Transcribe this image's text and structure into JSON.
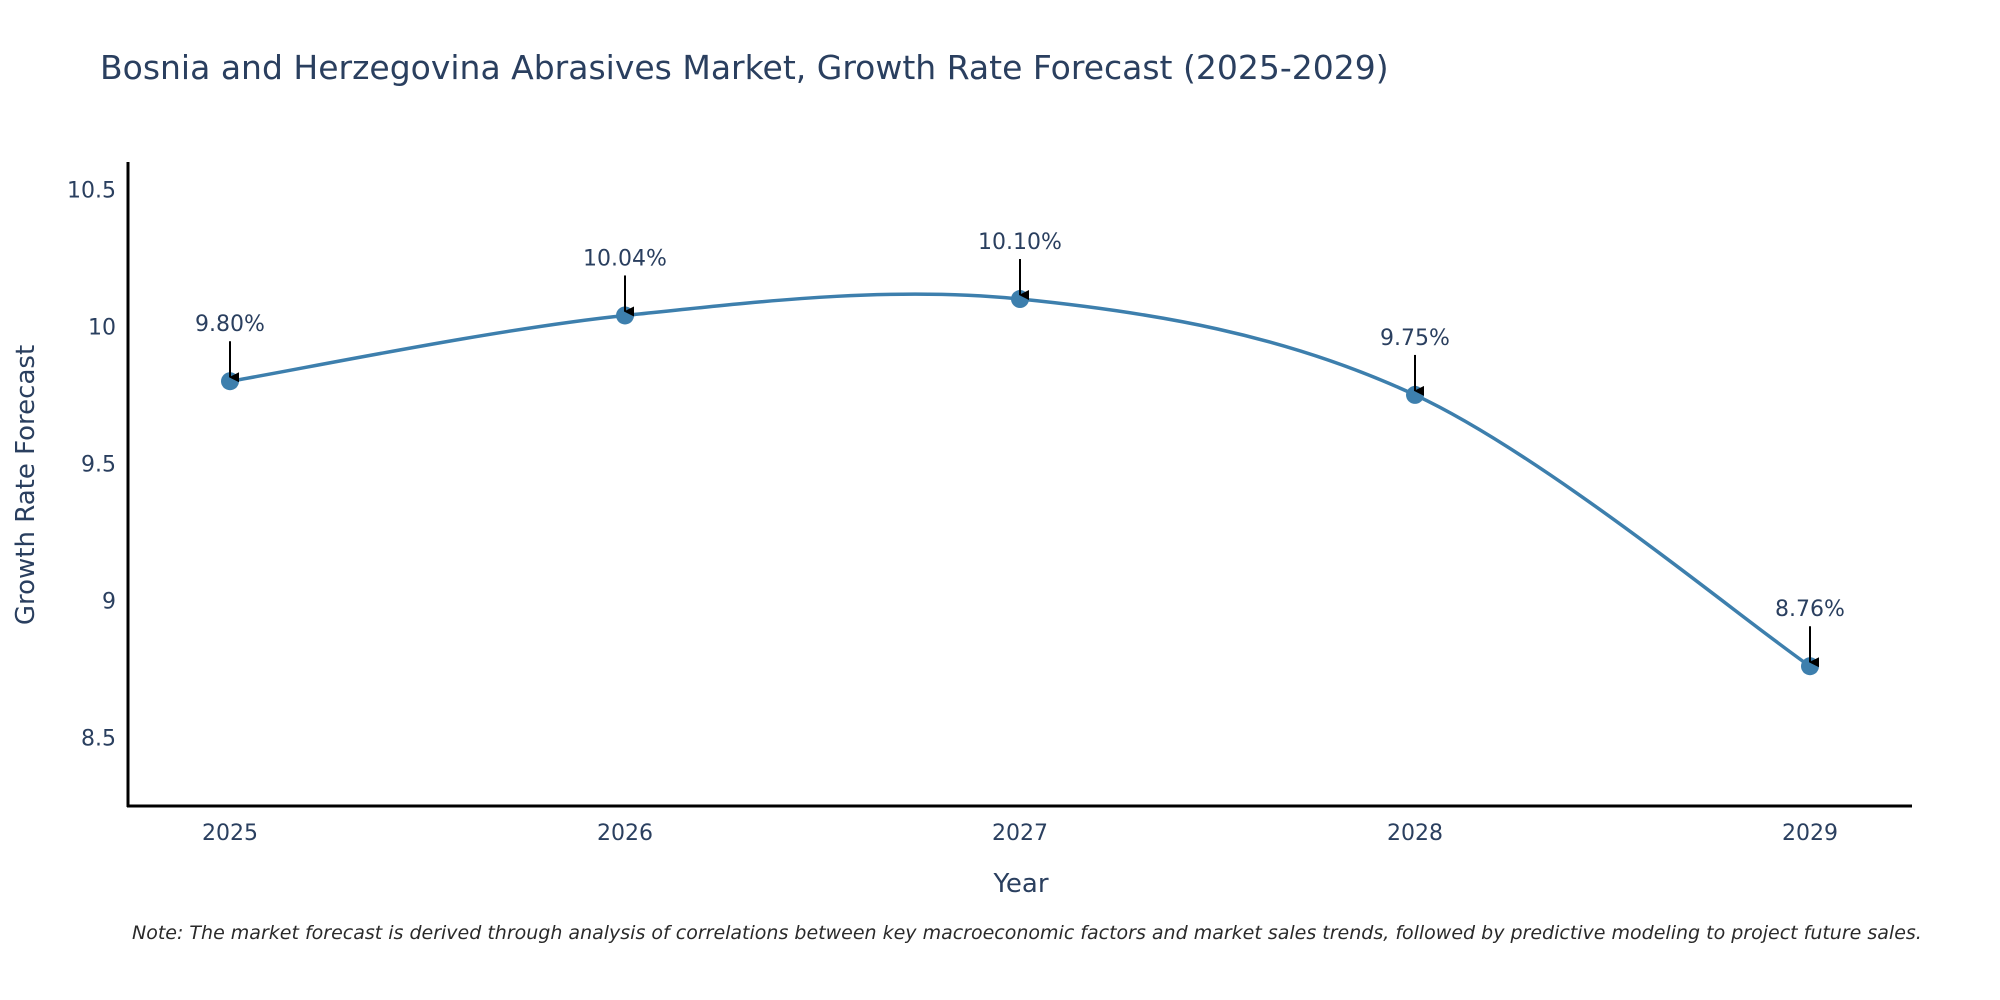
{
  "chart_data": {
    "type": "line",
    "title": "Bosnia and Herzegovina Abrasives Market, Growth Rate Forecast (2025-2029)",
    "xlabel": "Year",
    "ylabel": "Growth Rate Forecast",
    "categories": [
      "2025",
      "2026",
      "2027",
      "2028",
      "2029"
    ],
    "values": [
      9.8,
      10.04,
      10.1,
      9.75,
      8.76
    ],
    "data_labels": [
      "9.80%",
      "10.04%",
      "10.10%",
      "9.75%",
      "8.76%"
    ],
    "ylim": [
      8.25,
      10.6
    ],
    "y_ticks": [
      8.5,
      9,
      9.5,
      10,
      10.5
    ],
    "y_tick_labels": [
      "8.5",
      "9",
      "9.5",
      "10",
      "10.5"
    ],
    "grid": false,
    "line_shape": "spline",
    "line_color": "#3d7fad",
    "marker_color": "#3d7fad",
    "arrow_color": "#000000",
    "note": "Note: The market forecast is derived through analysis of correlations between key macroeconomic factors and market sales trends, followed by predictive modeling to project future sales."
  }
}
